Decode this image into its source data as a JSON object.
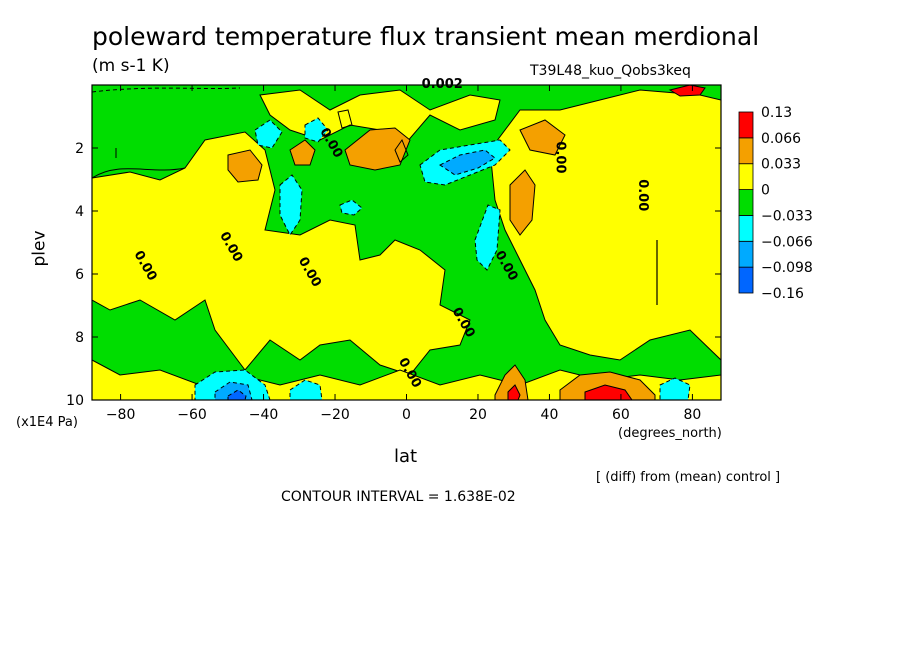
{
  "chart_data": {
    "type": "heatmap",
    "title": "poleward temperature flux transient mean merdional",
    "units": "(m s-1 K)",
    "run_name": "T39L48_kuo_Qobs3keq",
    "xlabel": "lat",
    "x_units": "(degrees_north)",
    "ylabel": "plev",
    "y_units": "(x1E4 Pa)",
    "xlim": [
      -88,
      88
    ],
    "ylim": [
      10,
      0
    ],
    "x_ticks": [
      -80,
      -60,
      -40,
      -20,
      0,
      20,
      40,
      60,
      80
    ],
    "x_tick_labels": [
      "−80",
      "−60",
      "−40",
      "−20",
      "0",
      "20",
      "40",
      "60",
      "80"
    ],
    "y_ticks": [
      2,
      4,
      6,
      8,
      10
    ],
    "y_tick_labels": [
      "2",
      "4",
      "6",
      "8",
      "10"
    ],
    "levels": [
      -0.16,
      -0.098,
      -0.066,
      -0.033,
      0,
      0.033,
      0.066,
      0.13
    ],
    "colorbar_labels": [
      "0.13",
      "0.066",
      "0.033",
      "0",
      "−0.033",
      "−0.066",
      "−0.098",
      "−0.16"
    ],
    "colors": [
      "#0066ff",
      "#00aaff",
      "#00ffff",
      "#00dd00",
      "#ffff00",
      "#f4a000",
      "#ff0000"
    ],
    "contour_labels": [
      {
        "lat": -74,
        "plev": 5.8,
        "text": "0.00"
      },
      {
        "lat": -50,
        "plev": 5.2,
        "text": "0.00"
      },
      {
        "lat": -28,
        "plev": 6.0,
        "text": "0.00"
      },
      {
        "lat": -22,
        "plev": 1.9,
        "text": "0.00"
      },
      {
        "lat": 15,
        "plev": 7.6,
        "text": "0.00"
      },
      {
        "lat": 27,
        "plev": 5.8,
        "text": "0.00"
      },
      {
        "lat": 0,
        "plev": 9.2,
        "text": "0.00"
      },
      {
        "lat": 42,
        "plev": 2.3,
        "text": "0.00"
      },
      {
        "lat": 65,
        "plev": 3.5,
        "text": "0.00"
      },
      {
        "lat": 10,
        "plev": 0.1,
        "text": "0.002"
      }
    ],
    "contour_interval_text": "CONTOUR INTERVAL = 1.638E-02",
    "note": "[ (diff) from (mean) control ]"
  }
}
